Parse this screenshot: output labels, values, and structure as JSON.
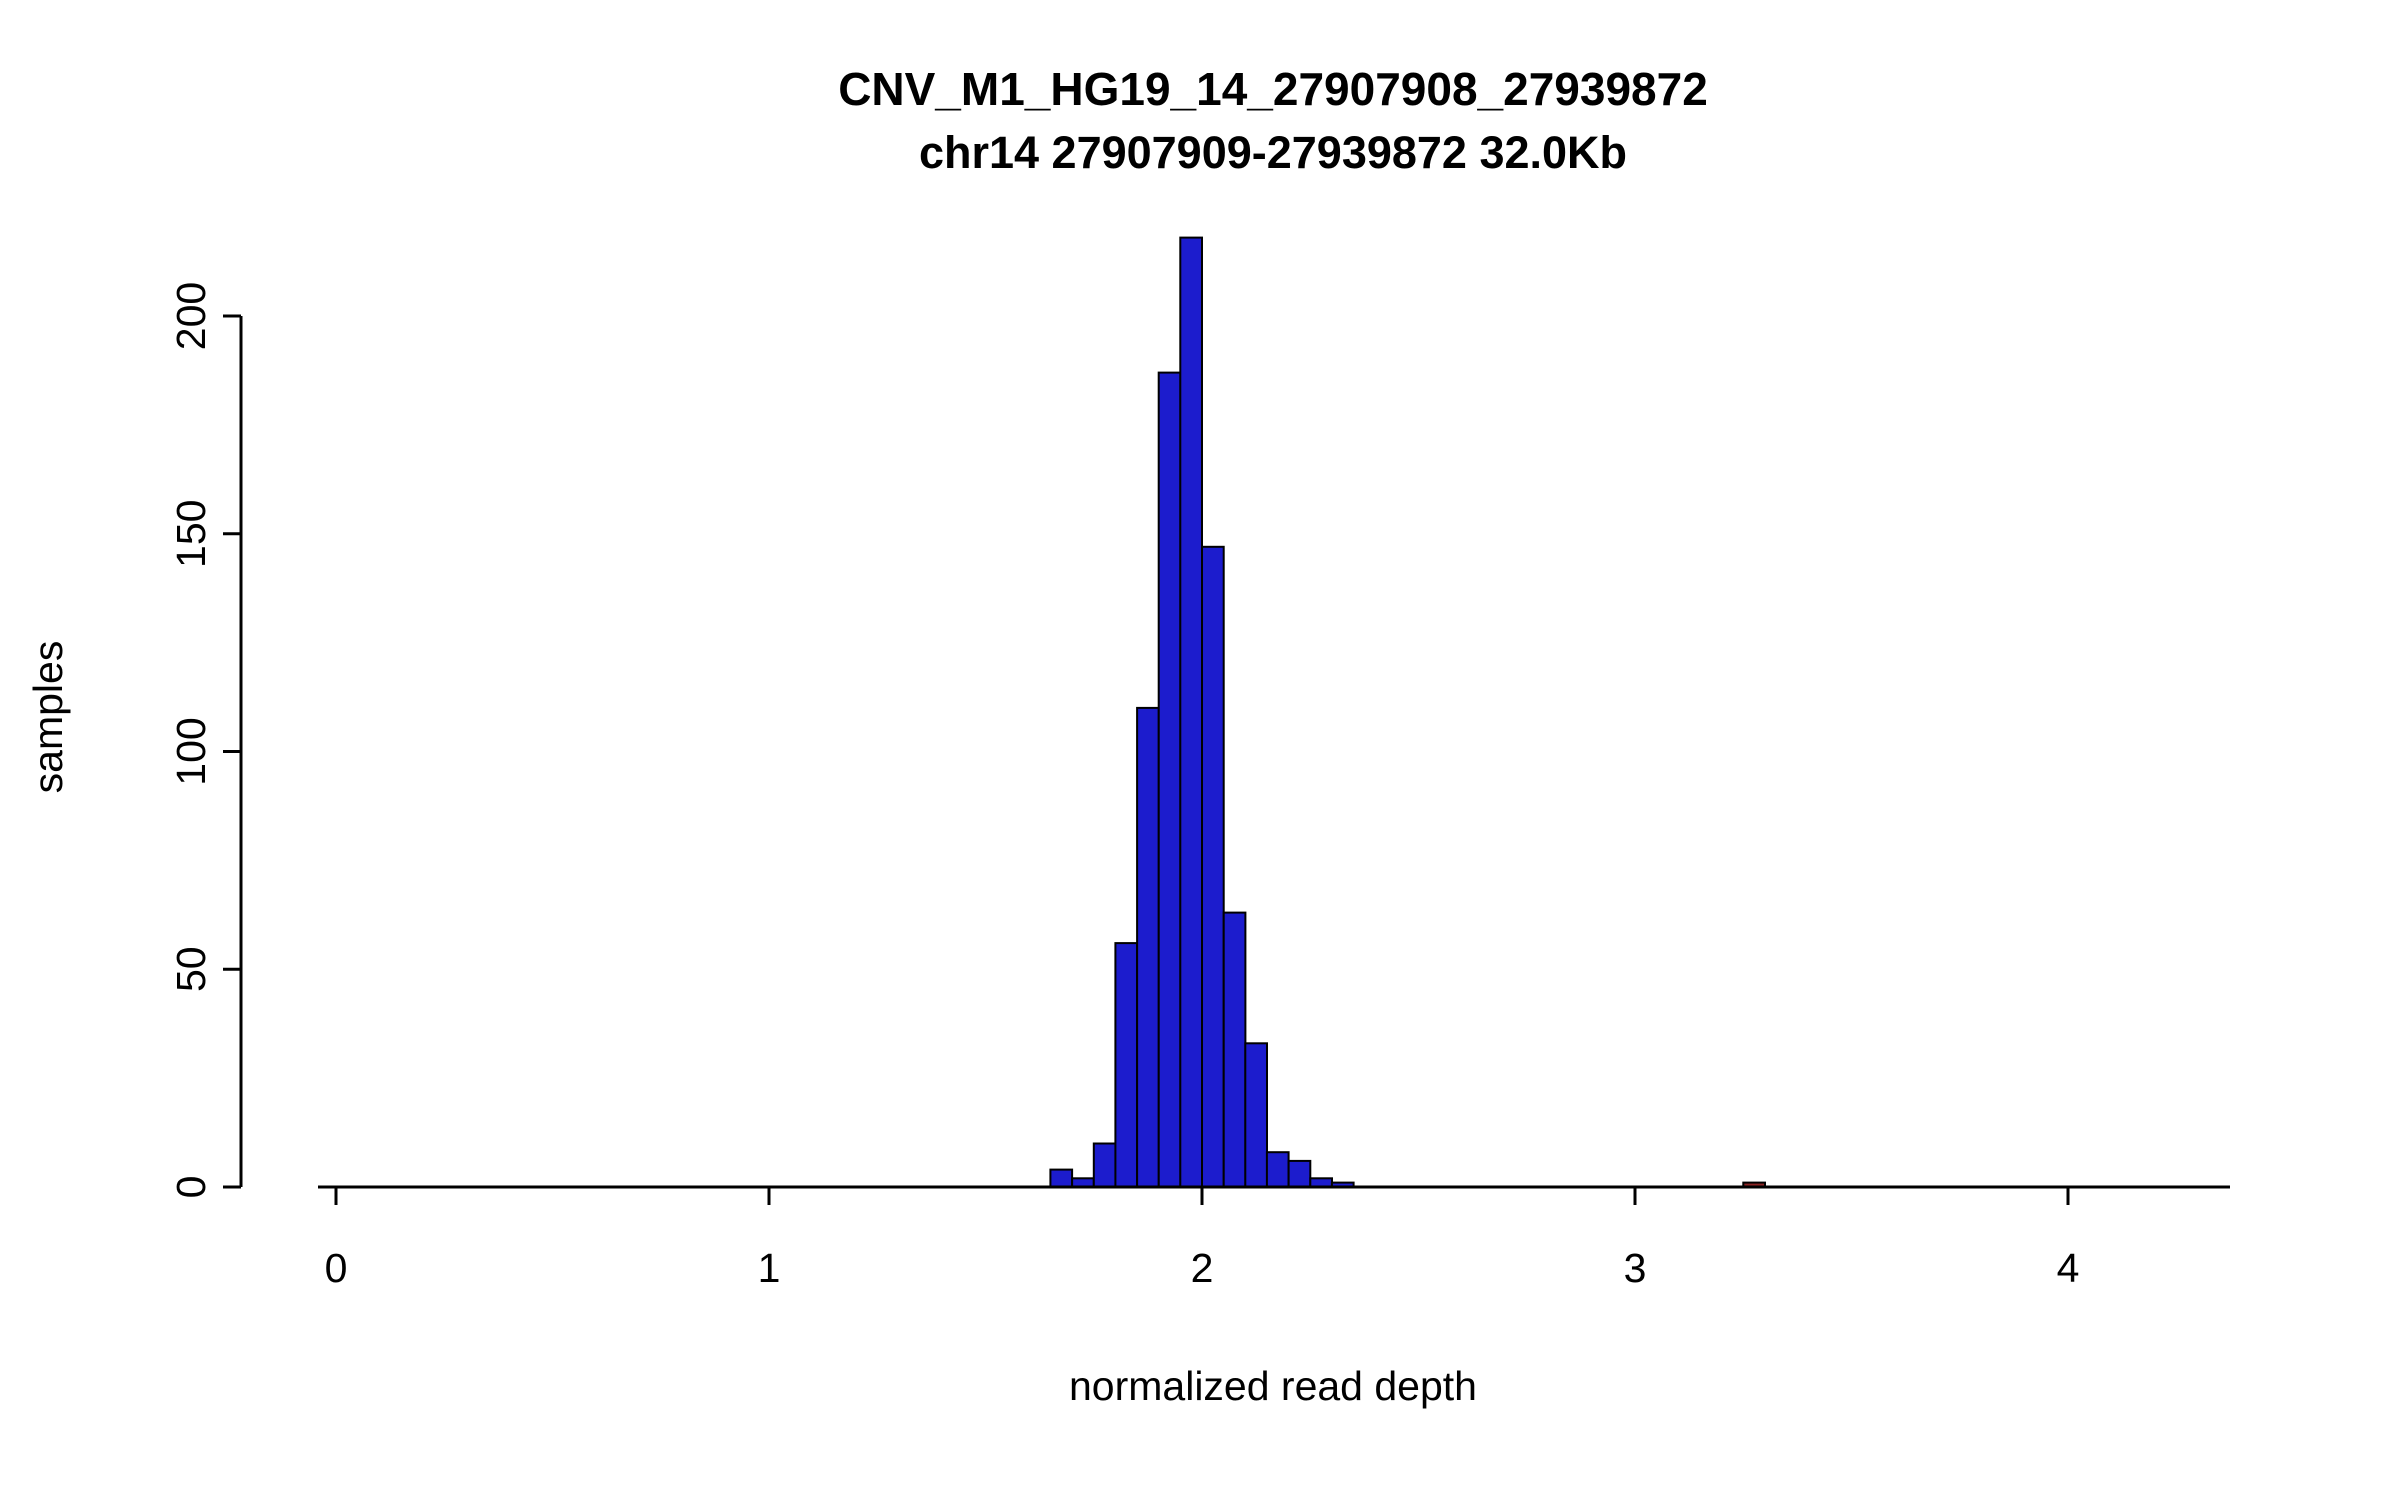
{
  "chart_data": {
    "type": "bar",
    "subtype": "histogram",
    "title": "CNV_M1_HG19_14_27907908_27939872",
    "subtitle": "chr14 27907909-27939872 32.0Kb",
    "xlabel": "normalized read depth",
    "ylabel": "samples",
    "xlim": [
      0,
      4.4
    ],
    "ylim": [
      0,
      220
    ],
    "x_ticks": [
      0,
      1,
      2,
      3,
      4
    ],
    "y_ticks": [
      0,
      50,
      100,
      150,
      200
    ],
    "grid": "off",
    "legend": "none",
    "bin_width": 0.05,
    "bar_color": "#1c1ccd",
    "outlier_color": "#8b2323",
    "axis_color": "#000000",
    "bins": [
      {
        "x": 1.65,
        "count": 4
      },
      {
        "x": 1.7,
        "count": 2
      },
      {
        "x": 1.75,
        "count": 10
      },
      {
        "x": 1.8,
        "count": 56
      },
      {
        "x": 1.85,
        "count": 110
      },
      {
        "x": 1.9,
        "count": 187
      },
      {
        "x": 1.95,
        "count": 218
      },
      {
        "x": 2.0,
        "count": 147
      },
      {
        "x": 2.05,
        "count": 63
      },
      {
        "x": 2.1,
        "count": 33
      },
      {
        "x": 2.15,
        "count": 8
      },
      {
        "x": 2.2,
        "count": 6
      },
      {
        "x": 2.25,
        "count": 2
      },
      {
        "x": 2.3,
        "count": 1
      },
      {
        "x": 3.25,
        "count": 1,
        "color": "outlier"
      }
    ]
  }
}
